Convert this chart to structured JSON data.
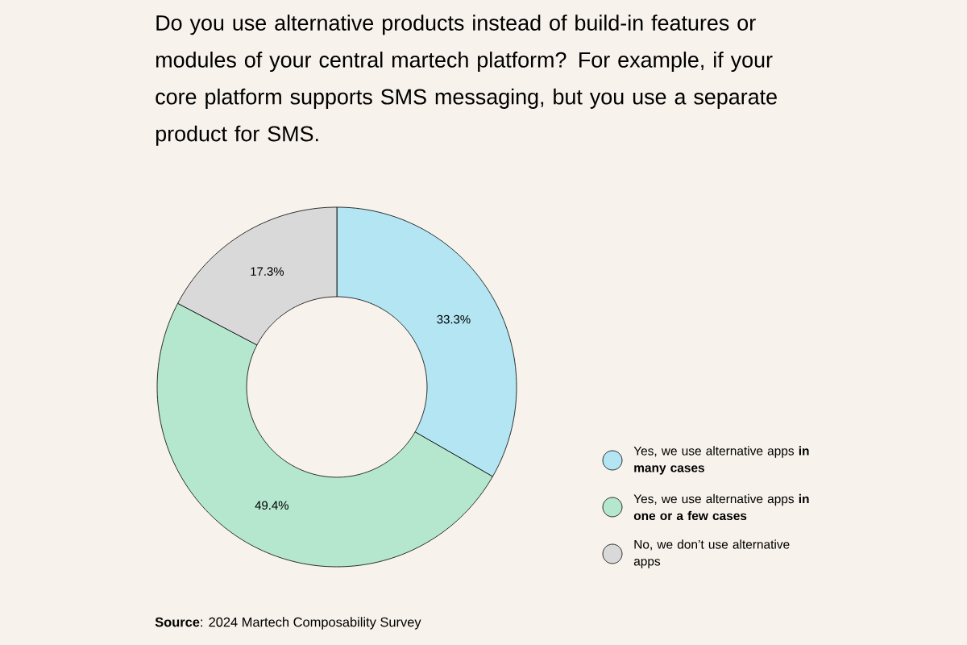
{
  "chart_data": {
    "type": "donut",
    "title": "Do you use alternative products instead of build-in features or modules of your central martech platform? For example, if your core platform supports SMS messaging, but you use a separate product for SMS.",
    "categories": [
      "Yes, we use alternative apps **in many cases**",
      "Yes, we use alternative apps **in one or a few cases**",
      "No, we don’t use alternative apps"
    ],
    "values": [
      33.3,
      49.4,
      17.3
    ],
    "colors": [
      "#b3e5f3",
      "#b5e6ce",
      "#d9d9d9"
    ],
    "value_labels": [
      "33.3%",
      "49.4%",
      "17.3%"
    ],
    "legend": "bottom right",
    "annotations": [
      "**Source**: 2024 Martech Composability Survey"
    ]
  }
}
